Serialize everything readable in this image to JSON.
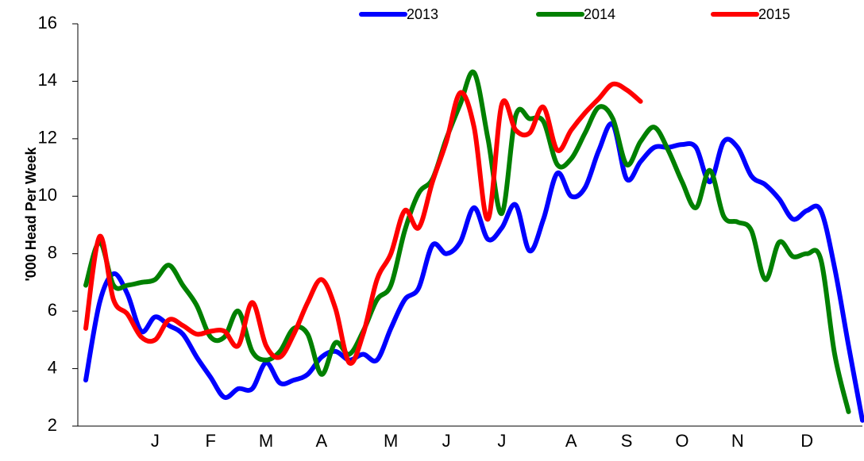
{
  "chart_data": {
    "type": "line",
    "y_label": "'000 Head Per Week",
    "categories": [
      null,
      null,
      null,
      null,
      null,
      "J",
      null,
      null,
      null,
      "F",
      null,
      null,
      null,
      "M",
      null,
      null,
      null,
      "A",
      null,
      null,
      null,
      null,
      "M",
      null,
      null,
      null,
      "J",
      null,
      null,
      null,
      "J",
      null,
      null,
      null,
      null,
      "A",
      null,
      null,
      null,
      "S",
      null,
      null,
      null,
      "O",
      null,
      null,
      null,
      "N",
      null,
      null,
      null,
      null,
      "D",
      null,
      null,
      null,
      null
    ],
    "series": [
      {
        "name": "2013",
        "color": "#0000ff",
        "values": [
          3.6,
          6.3,
          7.3,
          6.6,
          5.3,
          5.8,
          5.5,
          5.2,
          4.4,
          3.7,
          3.0,
          3.3,
          3.3,
          4.2,
          3.5,
          3.6,
          3.8,
          4.4,
          4.6,
          4.3,
          4.5,
          4.3,
          5.4,
          6.4,
          6.8,
          8.3,
          8.0,
          8.4,
          9.6,
          8.5,
          8.9,
          9.7,
          8.1,
          9.2,
          10.8,
          10.0,
          10.3,
          11.6,
          12.5,
          10.6,
          11.2,
          11.7,
          11.7,
          11.8,
          11.7,
          10.5,
          11.9,
          11.7,
          10.7,
          10.4,
          9.9,
          9.2,
          9.5,
          9.5,
          7.5,
          4.8,
          2.2
        ]
      },
      {
        "name": "2014",
        "color": "#008000",
        "values": [
          6.9,
          8.4,
          6.9,
          6.9,
          7.0,
          7.1,
          7.6,
          6.9,
          6.2,
          5.1,
          5.1,
          6.0,
          4.6,
          4.3,
          4.6,
          5.4,
          5.2,
          3.8,
          4.9,
          4.5,
          5.3,
          6.4,
          6.9,
          8.8,
          10.1,
          10.6,
          12.0,
          13.2,
          14.3,
          12.0,
          9.4,
          12.8,
          12.7,
          12.6,
          11.1,
          11.3,
          12.2,
          13.1,
          12.7,
          11.1,
          11.9,
          12.4,
          11.6,
          10.5,
          9.6,
          10.9,
          9.3,
          9.1,
          8.8,
          7.1,
          8.4,
          7.9,
          8.0,
          7.8,
          4.5,
          2.5,
          null
        ]
      },
      {
        "name": "2015",
        "color": "#ff0000",
        "values": [
          5.4,
          8.6,
          6.4,
          5.9,
          5.1,
          5.0,
          5.7,
          5.5,
          5.2,
          5.3,
          5.3,
          4.8,
          6.3,
          4.8,
          4.4,
          5.2,
          6.3,
          7.1,
          6.1,
          4.2,
          5.2,
          7.1,
          8.0,
          9.5,
          8.9,
          10.5,
          11.9,
          13.6,
          12.4,
          9.2,
          13.2,
          12.3,
          12.2,
          13.1,
          11.6,
          12.3,
          12.9,
          13.4,
          13.9,
          13.7,
          13.3,
          null,
          null,
          null,
          null,
          null,
          null,
          null,
          null,
          null,
          null,
          null,
          null,
          null,
          null,
          null,
          null
        ]
      }
    ],
    "ylim": [
      2,
      16
    ],
    "yticks": [
      2,
      4,
      6,
      8,
      10,
      12,
      14,
      16
    ],
    "grid": false,
    "legend": "top"
  }
}
